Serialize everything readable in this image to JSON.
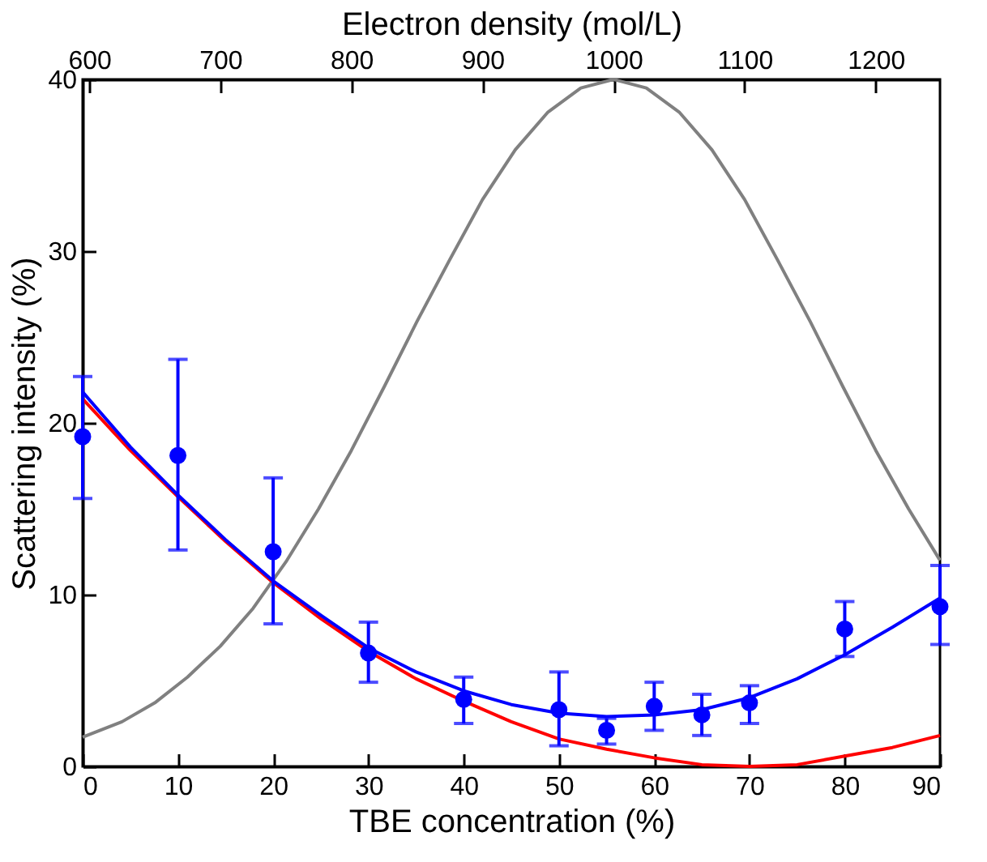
{
  "chart_data": {
    "type": "scatter",
    "xlabel": "TBE concentration (%)",
    "ylabel": "Scattering intensity (%)",
    "x2label": "Electron density (mol/L)",
    "xlim": [
      0,
      90
    ],
    "xticks": [
      0,
      10,
      20,
      30,
      40,
      50,
      60,
      70,
      80,
      90
    ],
    "x2lim": [
      595,
      1249
    ],
    "x2ticks": [
      600,
      700,
      800,
      900,
      1000,
      1100,
      1200
    ],
    "ylim": [
      0,
      40
    ],
    "yticks": [
      0,
      10,
      20,
      30,
      40
    ],
    "grid": false,
    "legend": false,
    "series": [
      {
        "type": "line",
        "color": "#808080",
        "axis": "x2",
        "marker": "none",
        "x": [
          595,
          625,
          650,
          675,
          700,
          725,
          750,
          775,
          800,
          825,
          850,
          875,
          900,
          925,
          950,
          975,
          1000,
          1025,
          1050,
          1075,
          1100,
          1125,
          1150,
          1175,
          1200,
          1225,
          1249
        ],
        "values": [
          1.7,
          2.6,
          3.7,
          5.2,
          7.0,
          9.2,
          11.9,
          15.0,
          18.4,
          22.1,
          25.9,
          29.5,
          33.0,
          35.9,
          38.1,
          39.5,
          40,
          39.5,
          38.1,
          35.9,
          33.0,
          29.5,
          25.9,
          22.1,
          18.4,
          15.0,
          12.0
        ]
      },
      {
        "type": "line",
        "color": "#ff0000",
        "marker": "none",
        "x": [
          0,
          5,
          10,
          15,
          20,
          25,
          30,
          35,
          40,
          45,
          50,
          55,
          60,
          65,
          70,
          75,
          80,
          85,
          90
        ],
        "values": [
          21.4,
          18.4,
          15.7,
          13.1,
          10.7,
          8.6,
          6.7,
          5.1,
          3.8,
          2.6,
          1.6,
          1.0,
          0.5,
          0.1,
          0.0,
          0.1,
          0.6,
          1.1,
          1.8
        ]
      },
      {
        "type": "line",
        "color": "#0000ff",
        "marker": "none",
        "x": [
          0,
          5,
          10,
          15,
          20,
          25,
          30,
          35,
          40,
          45,
          50,
          55,
          60,
          65,
          70,
          75,
          80,
          85,
          90
        ],
        "values": [
          21.8,
          18.6,
          15.8,
          13.2,
          10.8,
          8.8,
          6.9,
          5.5,
          4.4,
          3.6,
          3.1,
          2.9,
          3.0,
          3.3,
          4.0,
          5.1,
          6.5,
          8.1,
          9.8
        ]
      },
      {
        "color": "#0000ff",
        "marker": "circle",
        "x": [
          0,
          10,
          20,
          30,
          40,
          50,
          55,
          60,
          65,
          70,
          80,
          90
        ],
        "values": [
          19.2,
          18.1,
          12.5,
          6.6,
          3.9,
          3.3,
          2.1,
          3.5,
          3.0,
          3.7,
          8.0,
          9.3
        ],
        "errors": [
          [
            15.6,
            22.7
          ],
          [
            12.6,
            23.7
          ],
          [
            8.3,
            16.8
          ],
          [
            4.9,
            8.4
          ],
          [
            2.5,
            5.2
          ],
          [
            1.2,
            5.5
          ],
          [
            1.3,
            2.8
          ],
          [
            2.1,
            4.9
          ],
          [
            1.8,
            4.2
          ],
          [
            2.5,
            4.7
          ],
          [
            6.4,
            9.6
          ],
          [
            7.1,
            11.7
          ]
        ]
      }
    ]
  }
}
